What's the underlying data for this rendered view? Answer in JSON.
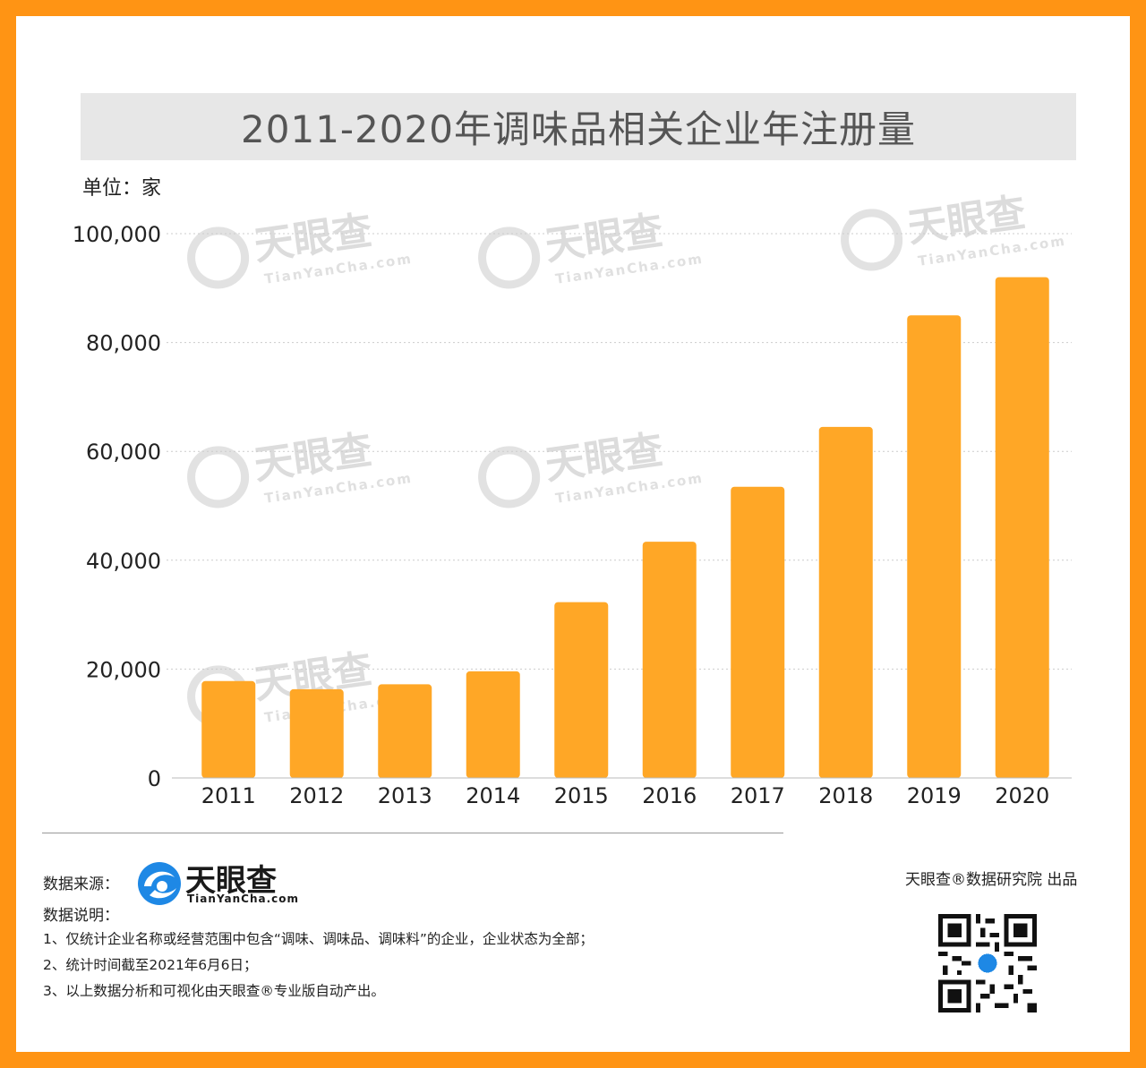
{
  "title": "2011-2020年调味品相关企业年注册量",
  "unit_label": "单位：家",
  "watermark": {
    "brand": "天眼查",
    "domain": "TianYanCha.com"
  },
  "colors": {
    "border": "#ff9414",
    "bar": "#ffa726",
    "title_bg": "#e7e7e7",
    "logo_blue": "#1e88e5"
  },
  "chart_data": {
    "type": "bar",
    "title": "2011-2020年调味品相关企业年注册量",
    "ylabel": "单位：家",
    "xlabel": "",
    "categories": [
      "2011",
      "2012",
      "2013",
      "2014",
      "2015",
      "2016",
      "2017",
      "2018",
      "2019",
      "2020"
    ],
    "values": [
      17800,
      16300,
      17200,
      19600,
      32300,
      43400,
      53500,
      64500,
      85000,
      92000
    ],
    "ylim": [
      0,
      100000
    ],
    "yticks": [
      0,
      20000,
      40000,
      60000,
      80000,
      100000
    ],
    "ytick_labels": [
      "0",
      "20,000",
      "40,000",
      "60,000",
      "80,000",
      "100,000"
    ],
    "grid": true,
    "legend": "none"
  },
  "footer": {
    "source_label": "数据来源：",
    "source_logo_name": "天眼查",
    "source_logo_domain": "TianYanCha.com",
    "notes_label": "数据说明：",
    "notes": [
      "1、仅统计企业名称或经营范围中包含“调味、调味品、调味料”的企业，企业状态为全部；",
      "2、统计时间截至2021年6月6日；",
      "3、以上数据分析和可视化由天眼查®专业版自动产出。"
    ],
    "publisher": "天眼查®数据研究院 出品"
  }
}
